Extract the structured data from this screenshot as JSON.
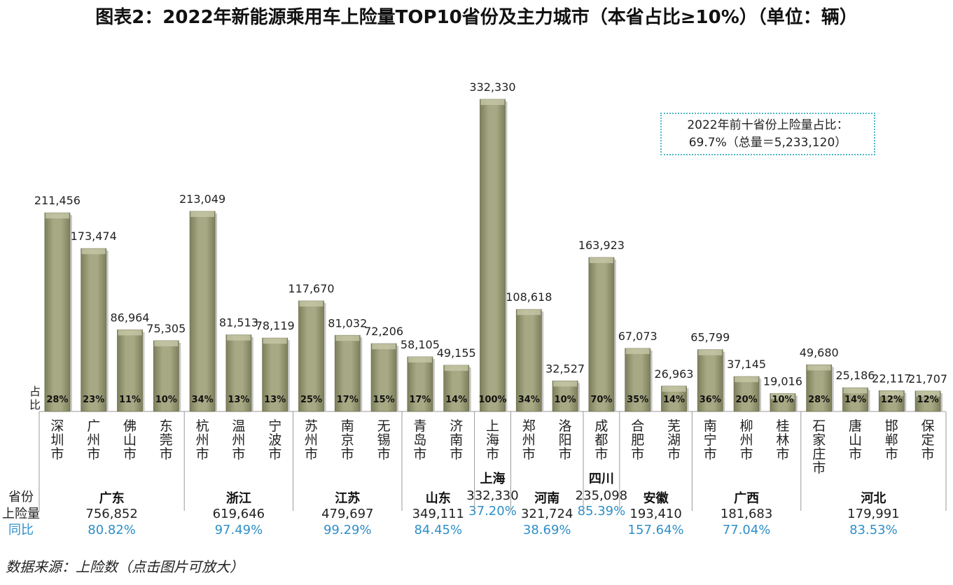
{
  "title": "图表2：2022年新能源乘用车上险量TOP10省份及主力城市（本省占比≥10%）（单位：辆）",
  "source": "数据来源：上险数（点击图片可放大）",
  "note": {
    "line1": "2022年前十省份上险量占比：",
    "line2": "69.7%（总量＝5,233,120）"
  },
  "labels": {
    "share": "占比",
    "province": "省份",
    "insured": "上险量",
    "yoy": "同比"
  },
  "colors": {
    "bar": "#a7a984",
    "bar_dark": "#7d7f5c",
    "yoy_text": "#2e8fc8"
  },
  "chart_data": {
    "type": "bar",
    "unit": "辆",
    "categories": [
      "深圳市",
      "广州市",
      "佛山市",
      "东莞市",
      "杭州市",
      "温州市",
      "宁波市",
      "苏州市",
      "南京市",
      "无锡市",
      "青岛市",
      "济南市",
      "上海市",
      "郑州市",
      "洛阳市",
      "成都市",
      "合肥市",
      "芜湖市",
      "南宁市",
      "柳州市",
      "桂林市",
      "石家庄市",
      "唐山市",
      "邯郸市",
      "保定市"
    ],
    "values": [
      211456,
      173474,
      86964,
      75305,
      213049,
      81513,
      78119,
      117670,
      81032,
      72206,
      58105,
      49155,
      332330,
      108618,
      32527,
      163923,
      67073,
      26963,
      65799,
      37145,
      19016,
      49680,
      25186,
      22117,
      21707
    ],
    "value_labels": [
      "211,456",
      "173,474",
      "86,964",
      "75,305",
      "213,049",
      "81,513",
      "78,119",
      "117,670",
      "81,032",
      "72,206",
      "58,105",
      "49,155",
      "332,330",
      "108,618",
      "32,527",
      "163,923",
      "67,073",
      "26,963",
      "65,799",
      "37,145",
      "19,016",
      "49,680",
      "25,186",
      "22,117",
      "21,707"
    ],
    "shares": [
      "28%",
      "23%",
      "11%",
      "10%",
      "34%",
      "13%",
      "13%",
      "25%",
      "17%",
      "15%",
      "17%",
      "14%",
      "100%",
      "34%",
      "10%",
      "70%",
      "35%",
      "14%",
      "36%",
      "20%",
      "10%",
      "28%",
      "14%",
      "12%",
      "12%"
    ],
    "ylim": [
      0,
      340000
    ],
    "provinces": [
      {
        "name": "广东",
        "total": "756,852",
        "yoy": "80.82%",
        "cities": [
          0,
          1,
          2,
          3
        ]
      },
      {
        "name": "浙江",
        "total": "619,646",
        "yoy": "97.49%",
        "cities": [
          4,
          5,
          6
        ]
      },
      {
        "name": "江苏",
        "total": "479,697",
        "yoy": "99.29%",
        "cities": [
          7,
          8,
          9
        ]
      },
      {
        "name": "山东",
        "total": "349,111",
        "yoy": "84.45%",
        "cities": [
          10,
          11
        ]
      },
      {
        "name": "上海",
        "total": "332,330",
        "yoy": "37.20%",
        "cities": [
          12
        ]
      },
      {
        "name": "河南",
        "total": "321,724",
        "yoy": "38.69%",
        "cities": [
          13,
          14
        ]
      },
      {
        "name": "四川",
        "total": "235,098",
        "yoy": "85.39%",
        "cities": [
          15
        ]
      },
      {
        "name": "安徽",
        "total": "193,410",
        "yoy": "157.64%",
        "cities": [
          16,
          17
        ]
      },
      {
        "name": "广西",
        "total": "181,683",
        "yoy": "77.04%",
        "cities": [
          18,
          19,
          20
        ]
      },
      {
        "name": "河北",
        "total": "179,991",
        "yoy": "83.53%",
        "cities": [
          21,
          22,
          23,
          24
        ]
      }
    ]
  }
}
